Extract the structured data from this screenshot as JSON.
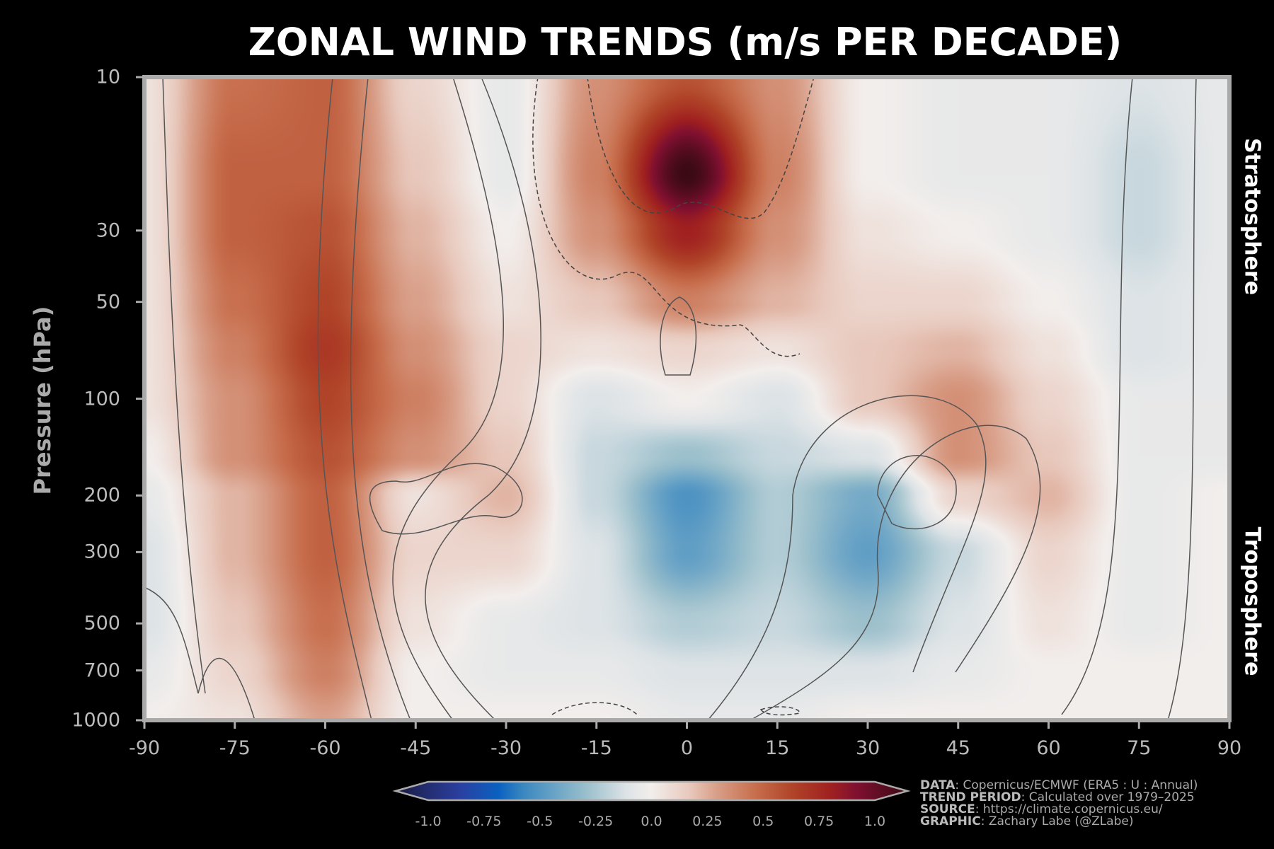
{
  "chart_data": {
    "type": "heatmap",
    "title": "ZONAL WIND TRENDS (m/s PER DECADE)",
    "xlabel": "",
    "ylabel": "Pressure (hPa)",
    "xlim": [
      -90,
      90
    ],
    "ylim": [
      1000,
      10
    ],
    "yscale": "log",
    "x_ticks": [
      "-90",
      "-75",
      "-60",
      "-45",
      "-30",
      "-15",
      "0",
      "15",
      "30",
      "45",
      "60",
      "75",
      "90"
    ],
    "y_ticks": [
      "10",
      "30",
      "50",
      "100",
      "200",
      "300",
      "500",
      "700",
      "1000"
    ],
    "annotations": [
      "Stratosphere",
      "Troposphere"
    ],
    "x": [
      -90,
      -75,
      -60,
      -45,
      -30,
      -15,
      0,
      15,
      30,
      45,
      60,
      75,
      90
    ],
    "pressure": [
      10,
      20,
      30,
      50,
      70,
      100,
      150,
      200,
      300,
      500,
      700,
      1000
    ],
    "values": [
      [
        0.05,
        0.4,
        0.45,
        0.1,
        -0.05,
        0.3,
        0.5,
        0.3,
        0.0,
        -0.05,
        -0.05,
        -0.1,
        -0.05
      ],
      [
        0.05,
        0.45,
        0.45,
        0.15,
        -0.05,
        0.35,
        1.0,
        0.35,
        0.0,
        -0.05,
        -0.05,
        -0.15,
        -0.05
      ],
      [
        0.05,
        0.45,
        0.5,
        0.2,
        0.0,
        0.3,
        0.7,
        0.3,
        0.05,
        0.0,
        -0.05,
        -0.15,
        -0.05
      ],
      [
        0.05,
        0.4,
        0.55,
        0.25,
        0.05,
        0.15,
        0.35,
        0.2,
        0.1,
        0.1,
        0.0,
        -0.1,
        -0.05
      ],
      [
        0.05,
        0.35,
        0.6,
        0.3,
        0.1,
        0.05,
        0.1,
        0.05,
        0.15,
        0.2,
        0.05,
        -0.1,
        -0.05
      ],
      [
        0.05,
        0.3,
        0.55,
        0.35,
        0.1,
        -0.1,
        0.0,
        -0.1,
        0.15,
        0.3,
        0.1,
        -0.05,
        -0.05
      ],
      [
        0.0,
        0.3,
        0.5,
        0.3,
        0.15,
        -0.15,
        -0.25,
        -0.15,
        -0.1,
        0.3,
        0.15,
        -0.05,
        -0.05
      ],
      [
        -0.05,
        0.2,
        0.45,
        0.05,
        0.2,
        -0.15,
        -0.45,
        -0.2,
        -0.35,
        0.1,
        0.2,
        -0.05,
        0.0
      ],
      [
        -0.1,
        0.2,
        0.45,
        0.1,
        0.1,
        -0.1,
        -0.4,
        -0.2,
        -0.4,
        -0.15,
        0.1,
        -0.05,
        0.0
      ],
      [
        -0.1,
        0.15,
        0.4,
        0.05,
        -0.05,
        -0.1,
        -0.2,
        -0.15,
        -0.25,
        -0.1,
        0.05,
        -0.05,
        0.0
      ],
      [
        -0.05,
        0.1,
        0.35,
        0.0,
        -0.05,
        -0.05,
        -0.1,
        -0.1,
        -0.1,
        -0.05,
        0.0,
        0.0,
        0.0
      ],
      [
        0.0,
        0.05,
        0.25,
        0.0,
        0.0,
        0.0,
        -0.05,
        -0.05,
        0.0,
        0.0,
        0.0,
        0.0,
        0.0
      ]
    ],
    "colorbar": {
      "range": [
        -1.0,
        1.0
      ],
      "ticks": [
        "-1.0",
        "-0.75",
        "-0.5",
        "-0.25",
        "0.0",
        "0.25",
        "0.5",
        "0.75",
        "1.0"
      ],
      "extend": "both",
      "stops": [
        [
          -1,
          "#1a1a40"
        ],
        [
          -0.75,
          "#2b3fa0"
        ],
        [
          -0.6,
          "#0a60c0"
        ],
        [
          -0.5,
          "#3a88c0"
        ],
        [
          -0.25,
          "#9cc0cc"
        ],
        [
          -0.1,
          "#dde3e6"
        ],
        [
          0,
          "#f2eeec"
        ],
        [
          0.15,
          "#e8c8bc"
        ],
        [
          0.25,
          "#d9a08a"
        ],
        [
          0.4,
          "#c8704f"
        ],
        [
          0.55,
          "#b04428"
        ],
        [
          0.7,
          "#a02020"
        ],
        [
          0.8,
          "#801030"
        ],
        [
          1,
          "#3a0a14"
        ]
      ]
    }
  },
  "footer": {
    "data_label": "DATA",
    "data_value": ": Copernicus/ECMWF (ERA5 : U : Annual)",
    "period_label": "TREND PERIOD",
    "period_value": ": Calculated over 1979–2025",
    "source_label": "SOURCE",
    "source_value": ": https://climate.copernicus.eu/",
    "graphic_label": "GRAPHIC",
    "graphic_value": ": Zachary Labe (@ZLabe)"
  }
}
